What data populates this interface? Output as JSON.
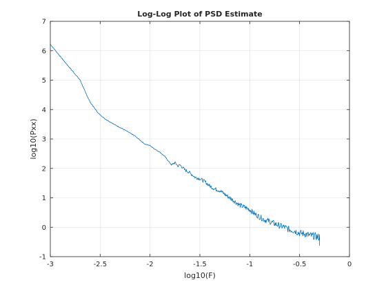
{
  "chart_data": {
    "type": "line",
    "title": "Log-Log Plot of PSD Estimate",
    "xlabel": "log10(F)",
    "ylabel": "log10(Pxx)",
    "xlim": [
      -3,
      0
    ],
    "ylim": [
      -1,
      7
    ],
    "xticks": [
      -3,
      -2.5,
      -2,
      -1.5,
      -1,
      -0.5,
      0
    ],
    "xtick_labels": [
      "-3",
      "-2.5",
      "-2",
      "-1.5",
      "-1",
      "-0.5",
      "0"
    ],
    "yticks": [
      -1,
      0,
      1,
      2,
      3,
      4,
      5,
      6,
      7
    ],
    "ytick_labels": [
      "-1",
      "0",
      "1",
      "2",
      "3",
      "4",
      "5",
      "6",
      "7"
    ],
    "grid": true,
    "line_color": "#0072bd",
    "series": [
      {
        "x": [
          -3.0,
          -2.85,
          -2.7,
          -2.65,
          -2.6,
          -2.52,
          -2.45,
          -2.35,
          -2.25,
          -2.15,
          -2.05,
          -2.0,
          -1.95,
          -1.9,
          -1.85,
          -1.8,
          -1.78,
          -1.75,
          -1.72,
          -1.7,
          -1.65,
          -1.6,
          -1.55,
          -1.5,
          -1.45,
          -1.4,
          -1.35,
          -1.3,
          -1.25,
          -1.2,
          -1.15,
          -1.1,
          -1.05,
          -1.0,
          -0.95,
          -0.9,
          -0.85,
          -0.8,
          -0.75,
          -0.7,
          -0.65,
          -0.6,
          -0.55,
          -0.5,
          -0.45,
          -0.4,
          -0.35,
          -0.3
        ],
        "y": [
          6.22,
          5.6,
          5.0,
          4.6,
          4.25,
          3.88,
          3.68,
          3.48,
          3.3,
          3.1,
          2.82,
          2.78,
          2.65,
          2.55,
          2.4,
          2.18,
          2.12,
          2.2,
          2.08,
          2.12,
          1.95,
          1.85,
          1.7,
          1.65,
          1.55,
          1.4,
          1.3,
          1.25,
          1.12,
          1.0,
          0.88,
          0.75,
          0.68,
          0.6,
          0.45,
          0.35,
          0.25,
          0.2,
          0.12,
          0.05,
          0.0,
          -0.08,
          -0.12,
          -0.2,
          -0.22,
          -0.28,
          -0.3,
          -0.35
        ]
      }
    ]
  }
}
